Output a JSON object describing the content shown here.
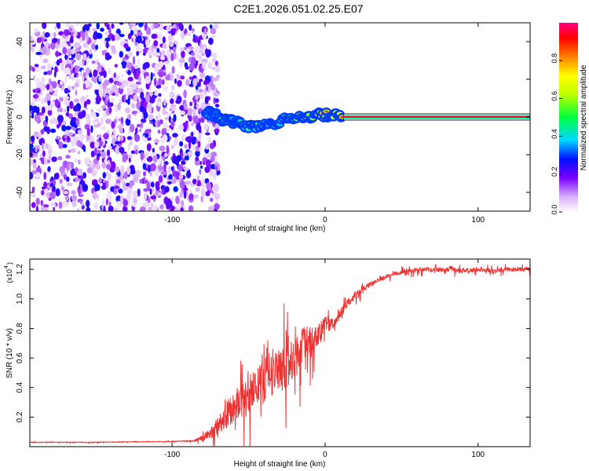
{
  "title": "C2E1.2026.051.02.25.E07",
  "chart_data": [
    {
      "type": "heatmap",
      "xlabel": "Height of straight line (km)",
      "ylabel": "Frequency (Hz)",
      "xlim": [
        -193,
        134
      ],
      "ylim": [
        -50,
        50
      ],
      "xticks": [
        -100,
        0,
        100
      ],
      "xtick_labels": [
        "-100",
        "0",
        "100"
      ],
      "yticks": [
        40,
        20,
        0,
        -20,
        -40
      ],
      "ytick_labels": [
        "40",
        "20",
        "0",
        "-20",
        "-40"
      ],
      "colorbar": {
        "label": "Normalized spectral amplitude",
        "range": [
          0,
          1
        ],
        "ticks": [
          0.0,
          0.2,
          0.4,
          0.6,
          0.8
        ],
        "tick_labels": [
          "0.0",
          "0.2",
          "0.4",
          "0.6",
          "0.8"
        ]
      },
      "noise_region_km": [
        -193,
        -78
      ],
      "track": [
        {
          "x": -78,
          "y": 3,
          "amp": 0.55
        },
        {
          "x": -72,
          "y": 1,
          "amp": 0.45
        },
        {
          "x": -65,
          "y": -2,
          "amp": 0.5
        },
        {
          "x": -58,
          "y": -3,
          "amp": 0.45
        },
        {
          "x": -50,
          "y": -5,
          "amp": 0.55
        },
        {
          "x": -43,
          "y": -5,
          "amp": 0.6
        },
        {
          "x": -36,
          "y": -4,
          "amp": 0.55
        },
        {
          "x": -28,
          "y": -2,
          "amp": 0.6
        },
        {
          "x": -20,
          "y": 0,
          "amp": 0.75
        },
        {
          "x": -12,
          "y": 0,
          "amp": 0.8
        },
        {
          "x": -4,
          "y": 1,
          "amp": 0.85
        },
        {
          "x": 4,
          "y": 1,
          "amp": 0.9
        },
        {
          "x": 12,
          "y": 0,
          "amp": 0.95
        }
      ],
      "constant_line": {
        "x_from": 12,
        "x_to": 134,
        "y": 0,
        "amp": 0.95
      }
    },
    {
      "type": "line",
      "xlabel": "Height of straight line (km)",
      "ylabel": "SNR (10 * v/v)",
      "y_multiplier_label": "(x10",
      "y_multiplier_exp": "4",
      "xlim": [
        -193,
        134
      ],
      "ylim": [
        0,
        1.27
      ],
      "xticks": [
        -100,
        0,
        100
      ],
      "xtick_labels": [
        "-100",
        "0",
        "100"
      ],
      "yticks": [
        0.2,
        0.4,
        0.6,
        0.8,
        1.0,
        1.2
      ],
      "ytick_labels": [
        "0.2",
        "0.4",
        "0.6",
        "0.8",
        "1.0",
        "1.2"
      ],
      "series": [
        {
          "name": "SNR",
          "color": "#ee3333",
          "x": [
            -193,
            -150,
            -100,
            -85,
            -78,
            -72,
            -66,
            -60,
            -55,
            -50,
            -45,
            -40,
            -35,
            -30,
            -25,
            -20,
            -15,
            -10,
            -5,
            0,
            5,
            10,
            15,
            20,
            25,
            30,
            35,
            40,
            45,
            50,
            55,
            60,
            70,
            80,
            90,
            100,
            110,
            120,
            134
          ],
          "base": [
            0.03,
            0.03,
            0.035,
            0.04,
            0.07,
            0.12,
            0.2,
            0.26,
            0.3,
            0.35,
            0.42,
            0.45,
            0.5,
            0.52,
            0.56,
            0.6,
            0.68,
            0.72,
            0.76,
            0.82,
            0.84,
            0.9,
            0.98,
            1.03,
            1.07,
            1.1,
            1.13,
            1.15,
            1.17,
            1.18,
            1.19,
            1.2,
            1.2,
            1.2,
            1.19,
            1.2,
            1.19,
            1.2,
            1.2
          ],
          "noise": [
            0.004,
            0.004,
            0.005,
            0.01,
            0.05,
            0.12,
            0.18,
            0.2,
            0.22,
            0.24,
            0.26,
            0.3,
            0.32,
            0.34,
            0.34,
            0.3,
            0.25,
            0.2,
            0.15,
            0.12,
            0.1,
            0.08,
            0.06,
            0.05,
            0.04,
            0.035,
            0.03,
            0.03,
            0.03,
            0.03,
            0.03,
            0.03,
            0.03,
            0.03,
            0.03,
            0.03,
            0.03,
            0.03,
            0.03
          ]
        }
      ]
    }
  ]
}
